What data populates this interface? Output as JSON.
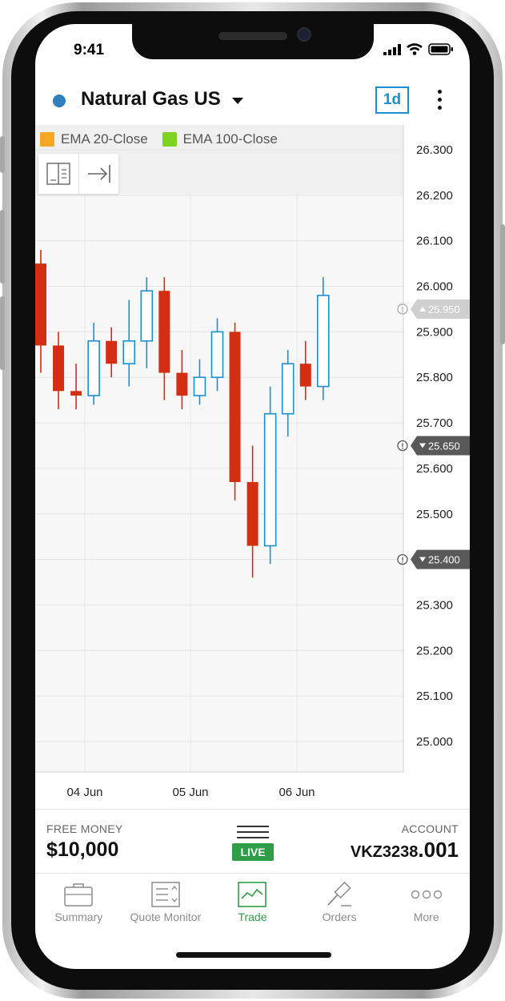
{
  "status_bar": {
    "time": "9:41"
  },
  "header": {
    "instrument": "Natural Gas US",
    "instrument_dot_color": "#2f7fc1",
    "timeframe": "1d",
    "menu_icon": "kebab-icon"
  },
  "legend": [
    {
      "label": "EMA 20-Close",
      "color": "#f5a623"
    },
    {
      "label": "EMA 100-Close",
      "color": "#7ed321"
    }
  ],
  "chart_data": {
    "type": "candlestick",
    "up_color": "#1a8fd1",
    "down_color": "#d32e12",
    "ylim": [
      24.88,
      26.34
    ],
    "y_ticks": [
      "26.300",
      "26.200",
      "26.100",
      "26.000",
      "25.900",
      "25.800",
      "25.700",
      "25.600",
      "25.500",
      "25.400",
      "25.300",
      "25.200",
      "25.100",
      "25.000"
    ],
    "x_ticks": [
      "04 Jun",
      "05 Jun",
      "06 Jun"
    ],
    "candles": [
      {
        "open": 26.05,
        "close": 25.87,
        "high": 26.08,
        "low": 25.81
      },
      {
        "open": 25.87,
        "close": 25.77,
        "high": 25.9,
        "low": 25.73
      },
      {
        "open": 25.77,
        "close": 25.76,
        "high": 25.83,
        "low": 25.73
      },
      {
        "open": 25.76,
        "close": 25.88,
        "high": 25.92,
        "low": 25.74
      },
      {
        "open": 25.88,
        "close": 25.83,
        "high": 25.91,
        "low": 25.8
      },
      {
        "open": 25.83,
        "close": 25.88,
        "high": 25.97,
        "low": 25.78
      },
      {
        "open": 25.88,
        "close": 25.99,
        "high": 26.02,
        "low": 25.82
      },
      {
        "open": 25.99,
        "close": 25.81,
        "high": 26.02,
        "low": 25.75
      },
      {
        "open": 25.81,
        "close": 25.76,
        "high": 25.86,
        "low": 25.73
      },
      {
        "open": 25.76,
        "close": 25.8,
        "high": 25.84,
        "low": 25.74
      },
      {
        "open": 25.8,
        "close": 25.9,
        "high": 25.93,
        "low": 25.77
      },
      {
        "open": 25.9,
        "close": 25.57,
        "high": 25.92,
        "low": 25.53
      },
      {
        "open": 25.57,
        "close": 25.43,
        "high": 25.65,
        "low": 25.36
      },
      {
        "open": 25.43,
        "close": 25.72,
        "high": 25.78,
        "low": 25.39
      },
      {
        "open": 25.72,
        "close": 25.83,
        "high": 25.86,
        "low": 25.67
      },
      {
        "open": 25.83,
        "close": 25.78,
        "high": 25.88,
        "low": 25.75
      },
      {
        "open": 25.78,
        "close": 25.98,
        "high": 26.02,
        "low": 25.75
      }
    ],
    "price_markers": [
      {
        "label": "25.950",
        "value": 25.95,
        "direction": "up",
        "style": "light"
      },
      {
        "label": "25.650",
        "value": 25.65,
        "direction": "down",
        "style": "dark"
      },
      {
        "label": "25.400",
        "value": 25.4,
        "direction": "down",
        "style": "dark"
      }
    ]
  },
  "account_bar": {
    "free_money_label": "FREE MONEY",
    "free_money_value": "$10,000",
    "live_label": "LIVE",
    "account_label": "ACCOUNT",
    "account_prefix": "VKZ3238",
    "account_suffix": ".001"
  },
  "tabs": [
    {
      "label": "Summary",
      "icon": "briefcase-icon",
      "active": false
    },
    {
      "label": "Quote Monitor",
      "icon": "quote-list-icon",
      "active": false
    },
    {
      "label": "Trade",
      "icon": "chart-line-icon",
      "active": true
    },
    {
      "label": "Orders",
      "icon": "gavel-icon",
      "active": false
    },
    {
      "label": "More",
      "icon": "more-dots-icon",
      "active": false
    }
  ]
}
